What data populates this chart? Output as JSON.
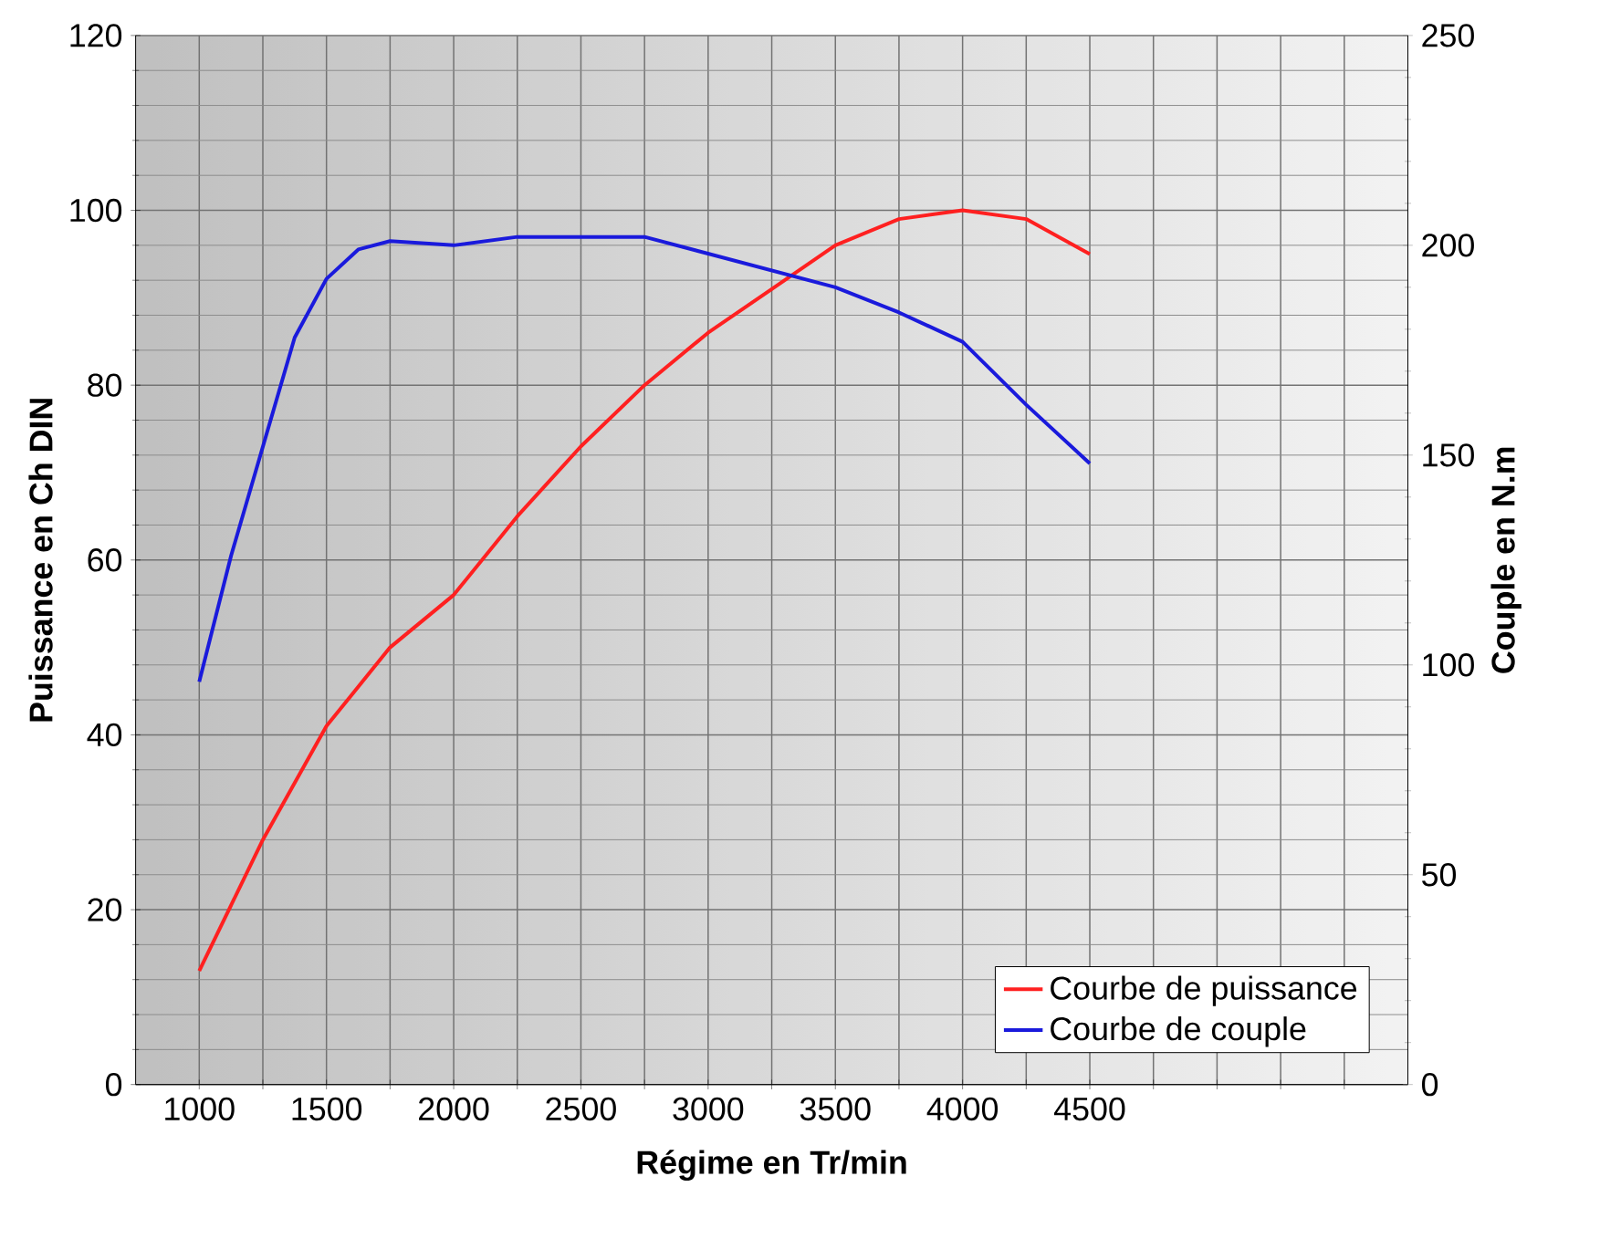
{
  "chart_data": {
    "type": "line",
    "xlabel": "Régime en Tr/min",
    "ylabel": "Puissance en Ch DIN",
    "y2label": "Couple en N.m",
    "x": [
      1000,
      1250,
      1500,
      1750,
      2000,
      2250,
      2500,
      2750,
      3000,
      3250,
      3500,
      3750,
      4000,
      4250,
      4500
    ],
    "series": [
      {
        "name": "Courbe de puissance",
        "color": "#ff2020",
        "values": [
          13,
          28,
          41,
          50,
          56,
          65,
          73,
          80,
          86,
          91,
          96,
          99,
          100,
          99,
          95
        ]
      },
      {
        "name": "Courbe de couple",
        "color": "#1a1adc",
        "axis": "y2",
        "x": [
          1000,
          1125,
          1250,
          1375,
          1500,
          1625,
          1750,
          2000,
          2250,
          2750,
          3000,
          3250,
          3500,
          3750,
          4000,
          4250,
          4500
        ],
        "values": [
          96,
          126,
          152,
          178,
          192,
          199,
          201,
          200,
          202,
          202,
          198,
          194,
          190,
          184,
          177,
          162,
          148
        ]
      }
    ],
    "xlim": [
      750,
      5750
    ],
    "xticks": [
      1000,
      {
        "value": 1250,
        "label": null
      },
      1500,
      {
        "value": 1750,
        "label": null
      },
      2000,
      {
        "value": 2250,
        "label": null
      },
      2500,
      {
        "value": 2750,
        "label": null
      },
      3000,
      {
        "value": 3250,
        "label": null
      },
      3500,
      {
        "value": 3750,
        "label": null
      },
      4000,
      {
        "value": 4250,
        "label": null
      },
      4500,
      {
        "value": 4750,
        "label": null
      },
      {
        "value": 5000,
        "label": null
      },
      {
        "value": 5250,
        "label": null
      },
      {
        "value": 5500,
        "label": null
      }
    ],
    "ylim": [
      0,
      120
    ],
    "yticks": [
      0,
      20,
      40,
      60,
      80,
      100,
      120
    ],
    "y2lim": [
      0,
      250
    ],
    "y2ticks": [
      0,
      50,
      100,
      150,
      200,
      250
    ],
    "grid": true,
    "legend": "bottom right",
    "line_style": "solid",
    "marker": "none"
  }
}
